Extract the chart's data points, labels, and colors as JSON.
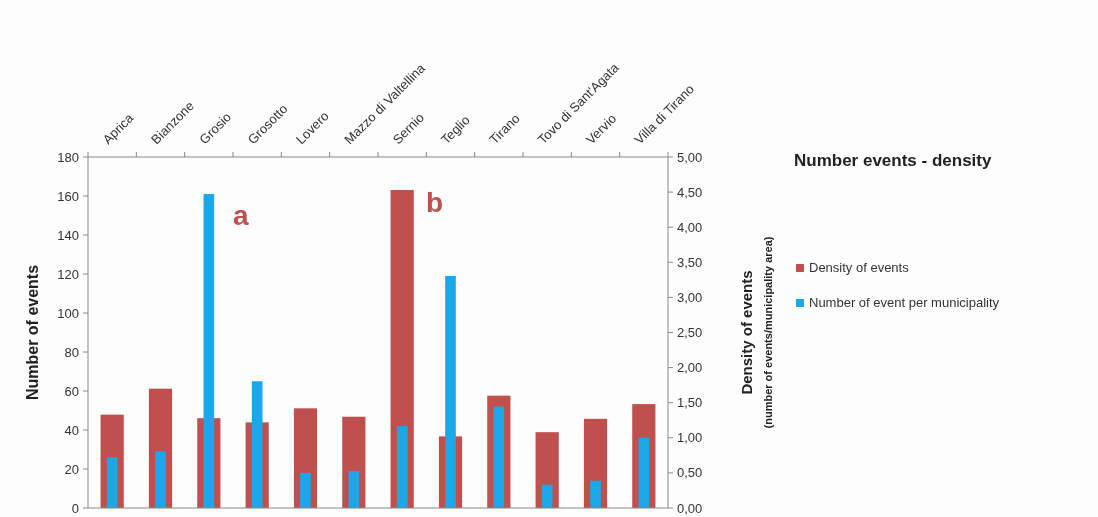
{
  "chart_data": {
    "type": "bar",
    "title": "Number events - density",
    "ylabel": "Number of events",
    "y2label": "Density of events",
    "subtitle": "(number of events/municipality area)",
    "categories": [
      "Aprica",
      "Bianzone",
      "Grosio",
      "Grosotto",
      "Lovero",
      "Mazzo di Valtellina",
      "Sernio",
      "Teglio",
      "Tirano",
      "Tovo di Sant'Agata",
      "Vervio",
      "Villa di Tirano"
    ],
    "series": [
      {
        "name": "Density of events",
        "color": "#c0504d",
        "axis": "y2",
        "values": [
          1.33,
          1.7,
          1.28,
          1.22,
          1.42,
          1.3,
          4.53,
          1.02,
          1.6,
          1.08,
          1.27,
          1.48
        ]
      },
      {
        "name": "Number of event per municipality",
        "color": "#1aa8e8",
        "values": [
          26,
          29,
          161,
          65,
          18,
          19,
          42,
          119,
          52,
          12,
          14,
          36
        ]
      }
    ],
    "ylim": [
      0,
      180
    ],
    "yticks": [
      0,
      20,
      40,
      60,
      80,
      100,
      120,
      140,
      160,
      180
    ],
    "y2lim": [
      0,
      5
    ],
    "y2ticks": [
      {
        "value": 0,
        "label": "0,00"
      },
      {
        "value": 0.5,
        "label": "0,50"
      },
      {
        "value": 1,
        "label": "1,00"
      },
      {
        "value": 1.5,
        "label": "1,50"
      },
      {
        "value": 2,
        "label": "2,00"
      },
      {
        "value": 2.5,
        "label": "2,50"
      },
      {
        "value": 3,
        "label": "3,00"
      },
      {
        "value": 3.5,
        "label": "3,50"
      },
      {
        "value": 4,
        "label": "4,00"
      },
      {
        "value": 4.5,
        "label": "4,50"
      },
      {
        "value": 5,
        "label": "5,00"
      }
    ],
    "annotations": [
      "a",
      "b"
    ],
    "legend": "right",
    "grid": false
  }
}
